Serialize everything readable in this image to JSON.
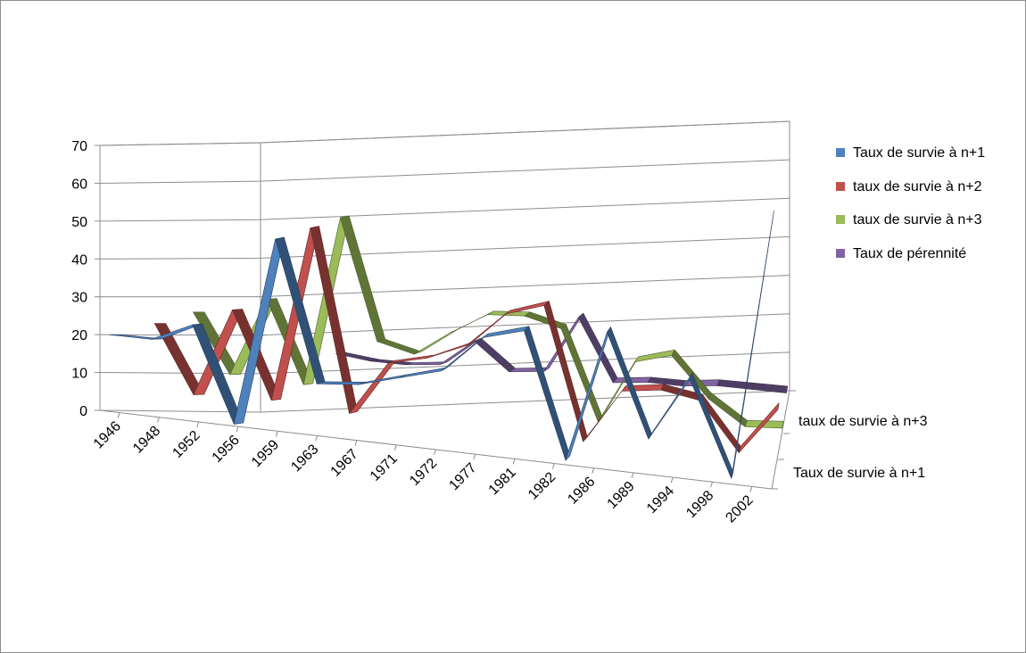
{
  "chart_data": {
    "type": "line",
    "style": "3d-line",
    "categories": [
      "1946",
      "1948",
      "1952",
      "1956",
      "1959",
      "1963",
      "1967",
      "1971",
      "1972",
      "1977",
      "1981",
      "1982",
      "1986",
      "1989",
      "1994",
      "1998",
      "2002"
    ],
    "series": [
      {
        "name": "Taux de survie à n+1",
        "color": "#4f81bd",
        "values": [
          20,
          20,
          25,
          0,
          50,
          13,
          14,
          17,
          20,
          30,
          33,
          0,
          35,
          8,
          25,
          0,
          70
        ]
      },
      {
        "name": "taux de survie à n+2",
        "color": "#c0504d",
        "values": [
          23,
          5,
          28,
          5,
          51,
          3,
          17,
          19,
          23,
          32,
          35,
          0,
          14,
          15,
          13,
          0,
          12
        ]
      },
      {
        "name": "taux de survie à n+3",
        "color": "#9bbb59",
        "values": [
          26,
          10,
          30,
          8,
          52,
          20,
          17,
          23,
          28,
          28,
          25,
          1,
          17,
          19,
          8,
          1,
          1
        ]
      },
      {
        "name": "Taux de pérennité",
        "color": "#8064a2",
        "values": [
          null,
          null,
          null,
          15,
          13,
          12,
          12,
          18,
          10,
          10,
          24,
          7,
          7,
          6,
          6,
          5,
          4
        ]
      }
    ],
    "ylim": [
      0,
      70
    ],
    "yticks": [
      "0",
      "10",
      "20",
      "30",
      "40",
      "50",
      "60",
      "70"
    ],
    "depth_axis_labels": [
      "taux de survie à n+3",
      "Taux de survie à n+1"
    ],
    "grid": true,
    "legend_position": "right"
  }
}
